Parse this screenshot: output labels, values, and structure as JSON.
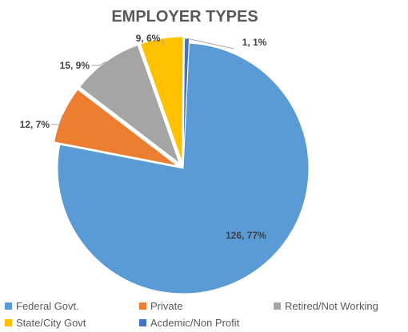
{
  "chart_data": {
    "type": "pie",
    "title": "EMPLOYER TYPES",
    "series": [
      {
        "name": "Federal Govt.",
        "value": 126,
        "percent": 77,
        "label": "126, 77%",
        "color": "#5b9bd5"
      },
      {
        "name": "Private",
        "value": 12,
        "percent": 7,
        "label": "12, 7%",
        "color": "#ed7d31"
      },
      {
        "name": "Retired/Not Working",
        "value": 15,
        "percent": 9,
        "label": "15, 9%",
        "color": "#a5a5a5"
      },
      {
        "name": "State/City Govt",
        "value": 9,
        "percent": 6,
        "label": "9, 6%",
        "color": "#ffc000"
      },
      {
        "name": "Acdemic/Non Profit",
        "value": 1,
        "percent": 1,
        "label": "1, 1%",
        "color": "#4472c4"
      }
    ],
    "legend_position": "bottom"
  }
}
